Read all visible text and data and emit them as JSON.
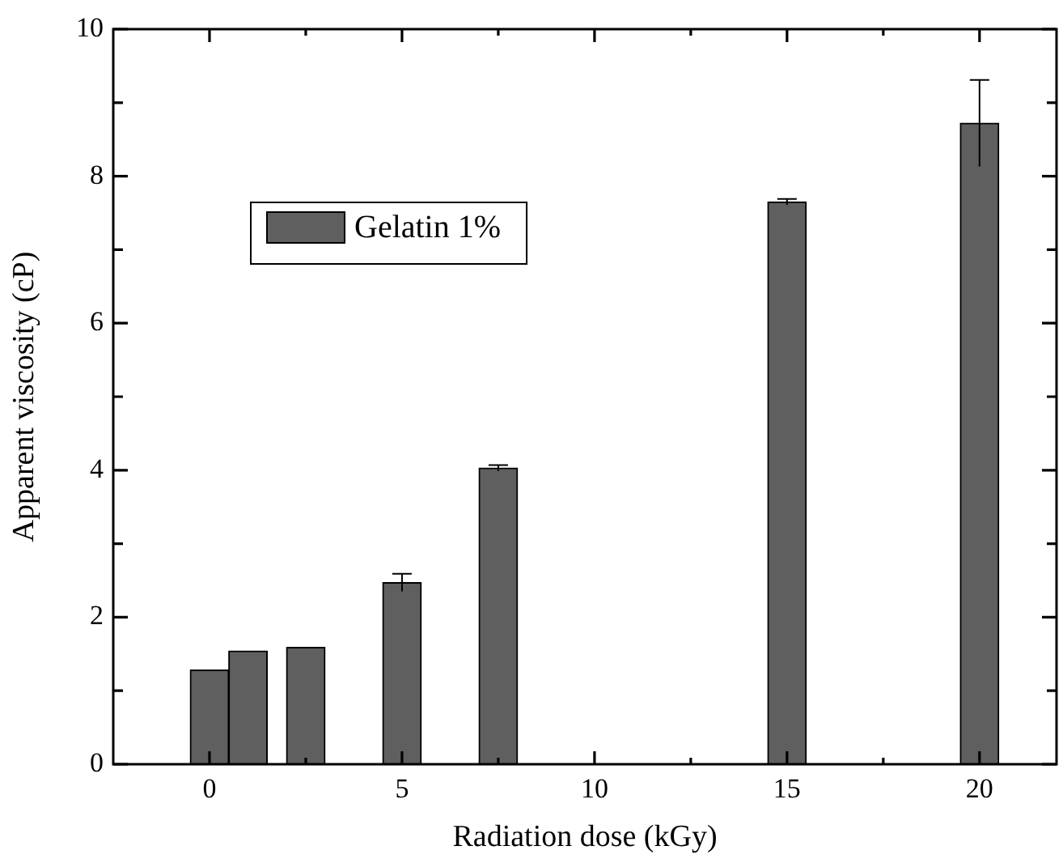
{
  "chart_data": {
    "type": "bar",
    "xlabel": "Radiation dose (kGy)",
    "ylabel": "Apparent viscosity (cP)",
    "x": [
      0,
      1,
      2.5,
      5,
      7.5,
      15,
      20
    ],
    "series": [
      {
        "name": "Gelatin 1%",
        "color": "#5f5f5f",
        "values": [
          1.28,
          1.54,
          1.59,
          2.47,
          4.03,
          7.65,
          8.72
        ],
        "errors": [
          null,
          null,
          null,
          0.12,
          0.04,
          0.04,
          0.59
        ]
      }
    ],
    "xlim": [
      -2.5,
      22
    ],
    "xticks": [
      0,
      {
        "value": 2.5,
        "label": null
      },
      5,
      {
        "value": 7.5,
        "label": null
      },
      10,
      {
        "value": 12.5,
        "label": null
      },
      15,
      {
        "value": 17.5,
        "label": null
      },
      20
    ],
    "ylim": [
      0,
      10
    ],
    "yticks": [
      0,
      {
        "value": 1,
        "label": null
      },
      2,
      {
        "value": 3,
        "label": null
      },
      4,
      {
        "value": 5,
        "label": null
      },
      6,
      {
        "value": 7,
        "label": null
      },
      8,
      {
        "value": 9,
        "label": null
      },
      10
    ],
    "legend": "top left",
    "grid": false
  }
}
